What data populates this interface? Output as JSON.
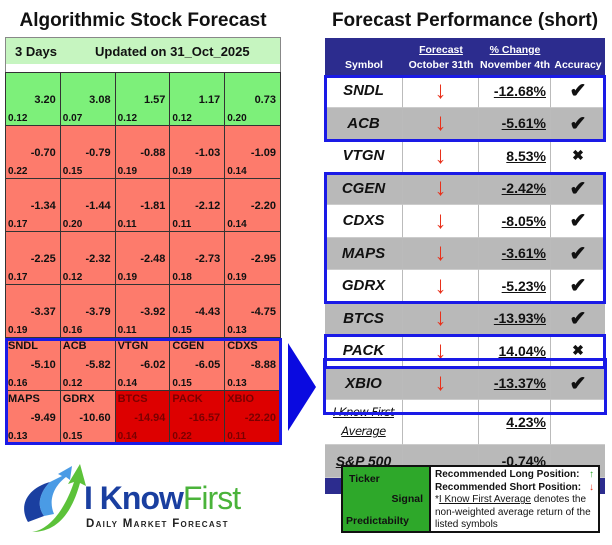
{
  "left": {
    "title": "Algorithmic Stock Forecast",
    "period": "3 Days",
    "updated": "Updated on 31_Oct_2025",
    "cells": [
      {
        "ticker": "",
        "signal": "3.20",
        "pred": "0.12",
        "color": "green"
      },
      {
        "ticker": "",
        "signal": "3.08",
        "pred": "0.07",
        "color": "green"
      },
      {
        "ticker": "",
        "signal": "1.57",
        "pred": "0.12",
        "color": "green"
      },
      {
        "ticker": "",
        "signal": "1.17",
        "pred": "0.12",
        "color": "green"
      },
      {
        "ticker": "",
        "signal": "0.73",
        "pred": "0.20",
        "color": "green"
      },
      {
        "ticker": "",
        "signal": "-0.70",
        "pred": "0.22",
        "color": "red"
      },
      {
        "ticker": "",
        "signal": "-0.79",
        "pred": "0.15",
        "color": "red"
      },
      {
        "ticker": "",
        "signal": "-0.88",
        "pred": "0.19",
        "color": "red"
      },
      {
        "ticker": "",
        "signal": "-1.03",
        "pred": "0.19",
        "color": "red"
      },
      {
        "ticker": "",
        "signal": "-1.09",
        "pred": "0.14",
        "color": "red"
      },
      {
        "ticker": "",
        "signal": "-1.34",
        "pred": "0.17",
        "color": "red"
      },
      {
        "ticker": "",
        "signal": "-1.44",
        "pred": "0.20",
        "color": "red"
      },
      {
        "ticker": "",
        "signal": "-1.81",
        "pred": "0.11",
        "color": "red"
      },
      {
        "ticker": "",
        "signal": "-2.12",
        "pred": "0.11",
        "color": "red"
      },
      {
        "ticker": "",
        "signal": "-2.20",
        "pred": "0.14",
        "color": "red"
      },
      {
        "ticker": "",
        "signal": "-2.25",
        "pred": "0.17",
        "color": "red"
      },
      {
        "ticker": "",
        "signal": "-2.32",
        "pred": "0.12",
        "color": "red"
      },
      {
        "ticker": "",
        "signal": "-2.48",
        "pred": "0.19",
        "color": "red"
      },
      {
        "ticker": "",
        "signal": "-2.73",
        "pred": "0.18",
        "color": "red"
      },
      {
        "ticker": "",
        "signal": "-2.95",
        "pred": "0.19",
        "color": "red"
      },
      {
        "ticker": "",
        "signal": "-3.37",
        "pred": "0.19",
        "color": "red"
      },
      {
        "ticker": "",
        "signal": "-3.79",
        "pred": "0.16",
        "color": "red"
      },
      {
        "ticker": "",
        "signal": "-3.92",
        "pred": "0.11",
        "color": "red"
      },
      {
        "ticker": "",
        "signal": "-4.43",
        "pred": "0.15",
        "color": "red"
      },
      {
        "ticker": "",
        "signal": "-4.75",
        "pred": "0.13",
        "color": "red"
      },
      {
        "ticker": "SNDL",
        "signal": "-5.10",
        "pred": "0.16",
        "color": "red"
      },
      {
        "ticker": "ACB",
        "signal": "-5.82",
        "pred": "0.12",
        "color": "red"
      },
      {
        "ticker": "VTGN",
        "signal": "-6.02",
        "pred": "0.14",
        "color": "red"
      },
      {
        "ticker": "CGEN",
        "signal": "-6.05",
        "pred": "0.15",
        "color": "red"
      },
      {
        "ticker": "CDXS",
        "signal": "-8.88",
        "pred": "0.13",
        "color": "red"
      },
      {
        "ticker": "MAPS",
        "signal": "-9.49",
        "pred": "0.13",
        "color": "red"
      },
      {
        "ticker": "GDRX",
        "signal": "-10.60",
        "pred": "0.15",
        "color": "red"
      },
      {
        "ticker": "BTCS",
        "signal": "-14.94",
        "pred": "0.14",
        "color": "deep"
      },
      {
        "ticker": "PACK",
        "signal": "-16.57",
        "pred": "0.22",
        "color": "deep"
      },
      {
        "ticker": "XBIO",
        "signal": "-22.20",
        "pred": "0.11",
        "color": "deep"
      }
    ]
  },
  "right": {
    "title": "Forecast Performance (short)",
    "headers": {
      "symbol": "Symbol",
      "forecast_top": "Forecast",
      "forecast_bottom": "October 31th",
      "change_top": "% Change",
      "change_bottom": "November 4th",
      "accuracy": "Accuracy"
    },
    "rows": [
      {
        "symbol": "SNDL",
        "forecast": "↓",
        "change": "-12.68%",
        "accuracy": "✔"
      },
      {
        "symbol": "ACB",
        "forecast": "↓",
        "change": "-5.61%",
        "accuracy": "✔"
      },
      {
        "symbol": "VTGN",
        "forecast": "↓",
        "change": "8.53%",
        "accuracy": "✖"
      },
      {
        "symbol": "CGEN",
        "forecast": "↓",
        "change": "-2.42%",
        "accuracy": "✔"
      },
      {
        "symbol": "CDXS",
        "forecast": "↓",
        "change": "-8.05%",
        "accuracy": "✔"
      },
      {
        "symbol": "MAPS",
        "forecast": "↓",
        "change": "-3.61%",
        "accuracy": "✔"
      },
      {
        "symbol": "GDRX",
        "forecast": "↓",
        "change": "-5.23%",
        "accuracy": "✔"
      },
      {
        "symbol": "BTCS",
        "forecast": "↓",
        "change": "-13.93%",
        "accuracy": "✔"
      },
      {
        "symbol": "PACK",
        "forecast": "↓",
        "change": "14.04%",
        "accuracy": "✖"
      },
      {
        "symbol": "XBIO",
        "forecast": "↓",
        "change": "-13.37%",
        "accuracy": "✔"
      }
    ],
    "average": {
      "label_line1": "I Know First",
      "label_line2": "Average",
      "change": "4.23%"
    },
    "sp500": {
      "label": "S&P 500",
      "change": "-0.74%"
    }
  },
  "logo": {
    "brand_part1": "I Know",
    "brand_part2": "First",
    "tagline": "Daily Market Forecast"
  },
  "legend": {
    "ticker": "Ticker",
    "signal": "Signal",
    "predictability": "Predictabilty",
    "long_label": "Recommended Long Position:",
    "long_icon": "↑",
    "short_label": "Recommended Short Position:",
    "short_icon": "↓",
    "note_prefix": "*",
    "note_link": "I Know First Average",
    "note_text": " denotes the non-weighted average return of the listed symbols"
  },
  "colors": {
    "green_cell": "#7df07a",
    "red_cell": "#fd7b6c",
    "deep_red_cell": "#dd0000",
    "header_navy": "#2c2c8e",
    "highlight_blue": "#1a1ae6",
    "arrow_red": "#e8301a"
  },
  "chart_data": {
    "type": "table",
    "title": "Algorithmic Stock Forecast",
    "subtitle": "3 Days — Updated on 31_Oct_2025",
    "forecast_heatmap": {
      "layout": "5x7 grid, signal (top-right) and predictability (bottom-left) per cell",
      "signals": [
        3.2,
        3.08,
        1.57,
        1.17,
        0.73,
        -0.7,
        -0.79,
        -0.88,
        -1.03,
        -1.09,
        -1.34,
        -1.44,
        -1.81,
        -2.12,
        -2.2,
        -2.25,
        -2.32,
        -2.48,
        -2.73,
        -2.95,
        -3.37,
        -3.79,
        -3.92,
        -4.43,
        -4.75,
        -5.1,
        -5.82,
        -6.02,
        -6.05,
        -8.88,
        -9.49,
        -10.6,
        -14.94,
        -16.57,
        -22.2
      ],
      "predictability": [
        0.12,
        0.07,
        0.12,
        0.12,
        0.2,
        0.22,
        0.15,
        0.19,
        0.19,
        0.14,
        0.17,
        0.2,
        0.11,
        0.11,
        0.14,
        0.17,
        0.12,
        0.19,
        0.18,
        0.19,
        0.19,
        0.16,
        0.11,
        0.15,
        0.13,
        0.16,
        0.12,
        0.14,
        0.15,
        0.13,
        0.13,
        0.15,
        0.14,
        0.22,
        0.11
      ],
      "named_tickers": [
        "SNDL",
        "ACB",
        "VTGN",
        "CGEN",
        "CDXS",
        "MAPS",
        "GDRX",
        "BTCS",
        "PACK",
        "XBIO"
      ]
    },
    "performance": {
      "title": "Forecast Performance (short)",
      "columns": [
        "Symbol",
        "Forecast October 31th",
        "% Change November 4th",
        "Accuracy"
      ],
      "rows": [
        [
          "SNDL",
          "down",
          -12.68,
          "correct"
        ],
        [
          "ACB",
          "down",
          -5.61,
          "correct"
        ],
        [
          "VTGN",
          "down",
          8.53,
          "incorrect"
        ],
        [
          "CGEN",
          "down",
          -2.42,
          "correct"
        ],
        [
          "CDXS",
          "down",
          -8.05,
          "correct"
        ],
        [
          "MAPS",
          "down",
          -3.61,
          "correct"
        ],
        [
          "GDRX",
          "down",
          -5.23,
          "correct"
        ],
        [
          "BTCS",
          "down",
          -13.93,
          "correct"
        ],
        [
          "PACK",
          "down",
          14.04,
          "incorrect"
        ],
        [
          "XBIO",
          "down",
          -13.37,
          "correct"
        ]
      ],
      "i_know_first_average": 4.23,
      "sp500": -0.74
    }
  }
}
